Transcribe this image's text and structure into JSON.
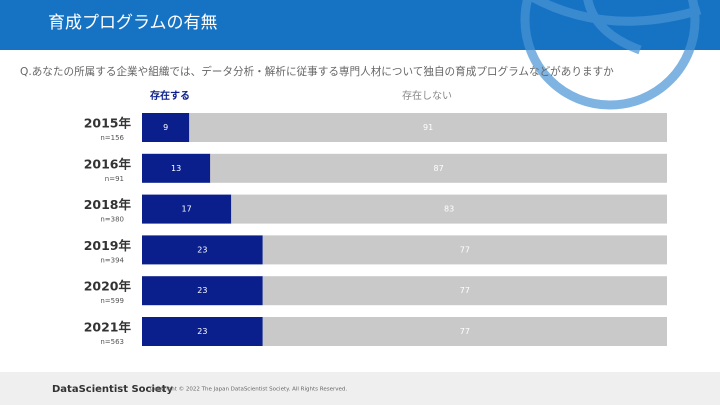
{
  "chart_data": {
    "type": "stacked-bar-horizontal",
    "title": "育成プログラムの有無",
    "subtitle": "Q.あなたの所属する企業や組織では、データ分析・解析に従事する専門人材について独自の育成プログラムなどがありますか",
    "categories": [
      "2015年",
      "2016年",
      "2018年",
      "2019年",
      "2020年",
      "2021年"
    ],
    "sample_sizes": [
      "n=156",
      "n=91",
      "n=380",
      "n=394",
      "n=599",
      "n=563"
    ],
    "xlim": [
      0,
      100
    ],
    "series": [
      {
        "name": "存在する",
        "color": "#0b1f8c",
        "values": [
          9,
          13,
          17,
          23,
          23,
          23
        ]
      },
      {
        "name": "存在しない",
        "color": "#c9c9c9",
        "values": [
          91,
          87,
          83,
          77,
          77,
          77
        ]
      }
    ]
  },
  "footer": {
    "brand": "DataScientist Society",
    "copyright": "Copyright © 2022 The Japan DataScientist Society. All Rights Reserved."
  }
}
